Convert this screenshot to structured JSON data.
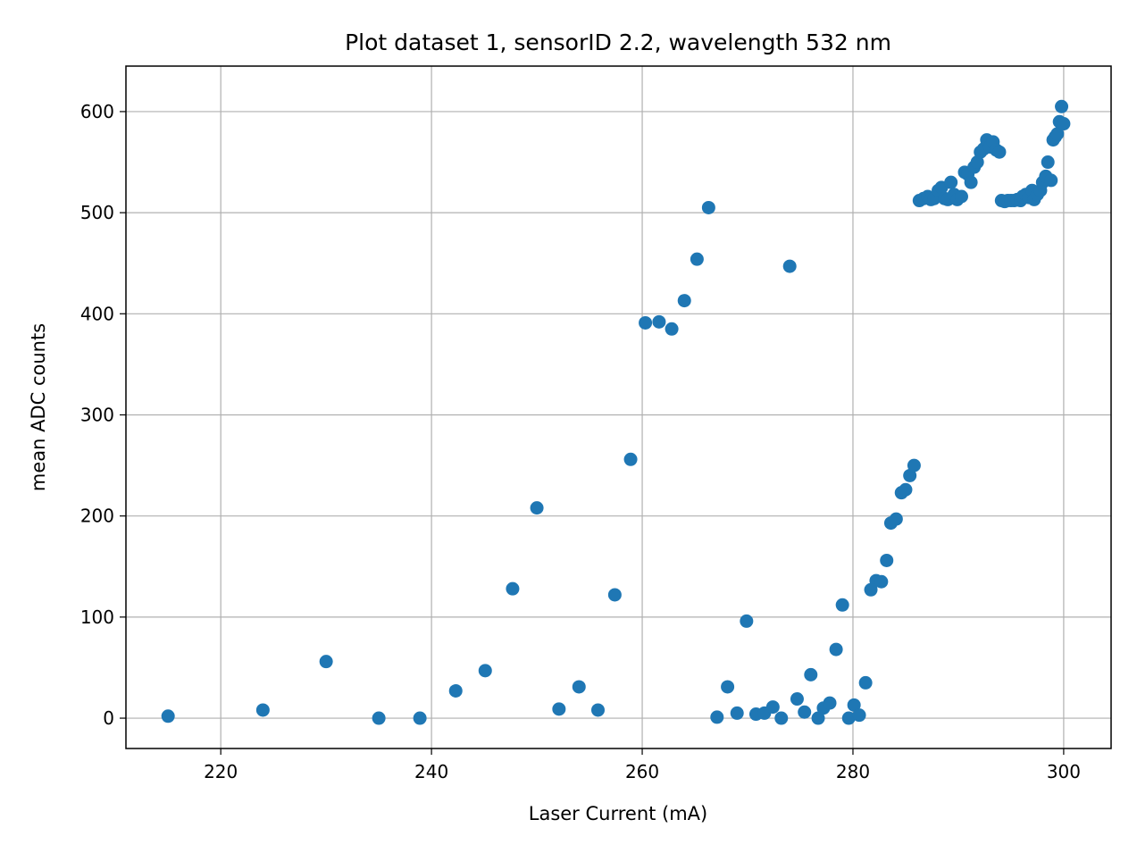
{
  "chart_data": {
    "type": "scatter",
    "title": "Plot dataset 1, sensorID 2.2, wavelength 532 nm",
    "xlabel": "Laser Current (mA)",
    "ylabel": "mean ADC counts",
    "xlim": [
      211,
      304.5
    ],
    "ylim": [
      -30,
      645
    ],
    "xticks": [
      220,
      240,
      260,
      280,
      300
    ],
    "yticks": [
      0,
      100,
      200,
      300,
      400,
      500,
      600
    ],
    "grid": true,
    "series": [
      {
        "color": "#1f77b4",
        "points": [
          [
            215.0,
            2
          ],
          [
            224.0,
            8
          ],
          [
            230.0,
            56
          ],
          [
            235.0,
            0
          ],
          [
            238.9,
            0
          ],
          [
            242.3,
            27
          ],
          [
            245.1,
            47
          ],
          [
            247.7,
            128
          ],
          [
            250.0,
            208
          ],
          [
            252.1,
            9
          ],
          [
            254.0,
            31
          ],
          [
            255.8,
            8
          ],
          [
            257.4,
            122
          ],
          [
            258.9,
            256
          ],
          [
            260.3,
            391
          ],
          [
            261.6,
            392
          ],
          [
            262.8,
            385
          ],
          [
            264.0,
            413
          ],
          [
            265.2,
            454
          ],
          [
            266.3,
            505
          ],
          [
            267.1,
            1
          ],
          [
            268.1,
            31
          ],
          [
            269.0,
            5
          ],
          [
            269.9,
            96
          ],
          [
            270.8,
            4
          ],
          [
            271.6,
            5
          ],
          [
            272.4,
            11
          ],
          [
            273.2,
            0
          ],
          [
            274.0,
            447
          ],
          [
            274.7,
            19
          ],
          [
            275.4,
            6
          ],
          [
            276.0,
            43
          ],
          [
            276.7,
            0
          ],
          [
            277.2,
            10
          ],
          [
            277.8,
            15
          ],
          [
            278.4,
            68
          ],
          [
            279.0,
            112
          ],
          [
            279.6,
            0
          ],
          [
            280.1,
            13
          ],
          [
            280.6,
            3
          ],
          [
            281.2,
            35
          ],
          [
            281.7,
            127
          ],
          [
            282.2,
            136
          ],
          [
            282.7,
            135
          ],
          [
            283.2,
            156
          ],
          [
            283.6,
            193
          ],
          [
            284.1,
            197
          ],
          [
            284.6,
            223
          ],
          [
            285.0,
            226
          ],
          [
            285.4,
            240
          ],
          [
            285.8,
            250
          ],
          [
            286.3,
            512
          ],
          [
            286.7,
            514
          ],
          [
            287.1,
            516
          ],
          [
            287.4,
            513
          ],
          [
            287.7,
            514
          ],
          [
            288.1,
            522
          ],
          [
            288.4,
            525
          ],
          [
            288.7,
            514
          ],
          [
            289.0,
            513
          ],
          [
            289.3,
            530
          ],
          [
            289.6,
            518
          ],
          [
            289.9,
            513
          ],
          [
            290.3,
            516
          ],
          [
            290.6,
            540
          ],
          [
            290.9,
            538
          ],
          [
            291.2,
            530
          ],
          [
            291.5,
            545
          ],
          [
            291.8,
            550
          ],
          [
            292.1,
            560
          ],
          [
            292.4,
            563
          ],
          [
            292.7,
            572
          ],
          [
            293.0,
            565
          ],
          [
            293.3,
            570
          ],
          [
            293.6,
            562
          ],
          [
            293.9,
            560
          ],
          [
            294.1,
            512
          ],
          [
            294.4,
            511
          ],
          [
            294.7,
            512
          ],
          [
            295.0,
            512
          ],
          [
            295.3,
            512
          ],
          [
            295.6,
            513
          ],
          [
            295.9,
            512
          ],
          [
            296.1,
            516
          ],
          [
            296.4,
            518
          ],
          [
            296.7,
            515
          ],
          [
            297.0,
            522
          ],
          [
            297.2,
            513
          ],
          [
            297.5,
            518
          ],
          [
            297.8,
            522
          ],
          [
            298.0,
            530
          ],
          [
            298.3,
            536
          ],
          [
            298.5,
            550
          ],
          [
            298.8,
            532
          ],
          [
            299.0,
            572
          ],
          [
            299.2,
            575
          ],
          [
            299.4,
            578
          ],
          [
            299.6,
            590
          ],
          [
            299.8,
            605
          ],
          [
            300.0,
            588
          ]
        ]
      }
    ]
  }
}
